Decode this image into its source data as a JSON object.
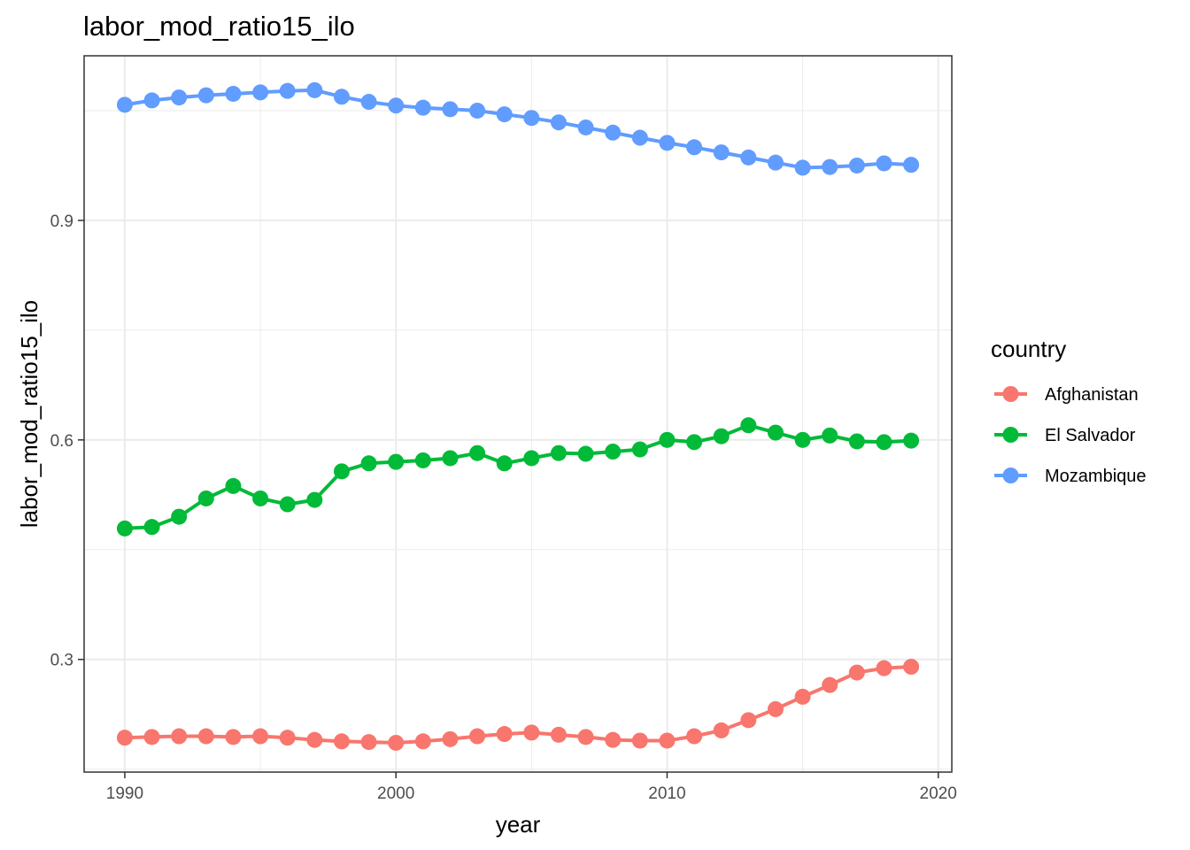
{
  "chart_data": {
    "type": "line",
    "title": "labor_mod_ratio15_ilo",
    "xlabel": "year",
    "ylabel": "labor_mod_ratio15_ilo",
    "xlim": [
      1988.5,
      2020.5
    ],
    "ylim": [
      0.146,
      1.125
    ],
    "x_ticks": [
      1990,
      2000,
      2010,
      2020
    ],
    "y_ticks": [
      0.3,
      0.6,
      0.9
    ],
    "x_tick_labels": [
      "1990",
      "2000",
      "2010",
      "2020"
    ],
    "y_tick_labels": [
      "0.3",
      "0.6",
      "0.9"
    ],
    "grid": true,
    "legend": {
      "title": "country",
      "position": "right"
    },
    "x": [
      1990,
      1991,
      1992,
      1993,
      1994,
      1995,
      1996,
      1997,
      1998,
      1999,
      2000,
      2001,
      2002,
      2003,
      2004,
      2005,
      2006,
      2007,
      2008,
      2009,
      2010,
      2011,
      2012,
      2013,
      2014,
      2015,
      2016,
      2017,
      2018,
      2019
    ],
    "series": [
      {
        "name": "Afghanistan",
        "color": "#F8766D",
        "values": [
          0.193,
          0.194,
          0.195,
          0.195,
          0.194,
          0.195,
          0.193,
          0.19,
          0.188,
          0.187,
          0.186,
          0.188,
          0.191,
          0.195,
          0.198,
          0.2,
          0.197,
          0.194,
          0.19,
          0.189,
          0.189,
          0.195,
          0.203,
          0.217,
          0.232,
          0.249,
          0.265,
          0.282,
          0.288,
          0.29
        ]
      },
      {
        "name": "El Salvador",
        "color": "#00BA38",
        "values": [
          0.479,
          0.481,
          0.495,
          0.52,
          0.537,
          0.52,
          0.512,
          0.518,
          0.557,
          0.568,
          0.57,
          0.572,
          0.575,
          0.582,
          0.568,
          0.575,
          0.582,
          0.581,
          0.584,
          0.587,
          0.6,
          0.597,
          0.605,
          0.62,
          0.61,
          0.6,
          0.606,
          0.598,
          0.597,
          0.599
        ]
      },
      {
        "name": "Mozambique",
        "color": "#619CFF",
        "values": [
          1.058,
          1.064,
          1.068,
          1.071,
          1.073,
          1.075,
          1.077,
          1.078,
          1.069,
          1.062,
          1.057,
          1.054,
          1.052,
          1.05,
          1.045,
          1.04,
          1.034,
          1.027,
          1.02,
          1.013,
          1.006,
          1.0,
          0.993,
          0.986,
          0.979,
          0.972,
          0.973,
          0.975,
          0.978,
          0.976
        ]
      }
    ]
  }
}
